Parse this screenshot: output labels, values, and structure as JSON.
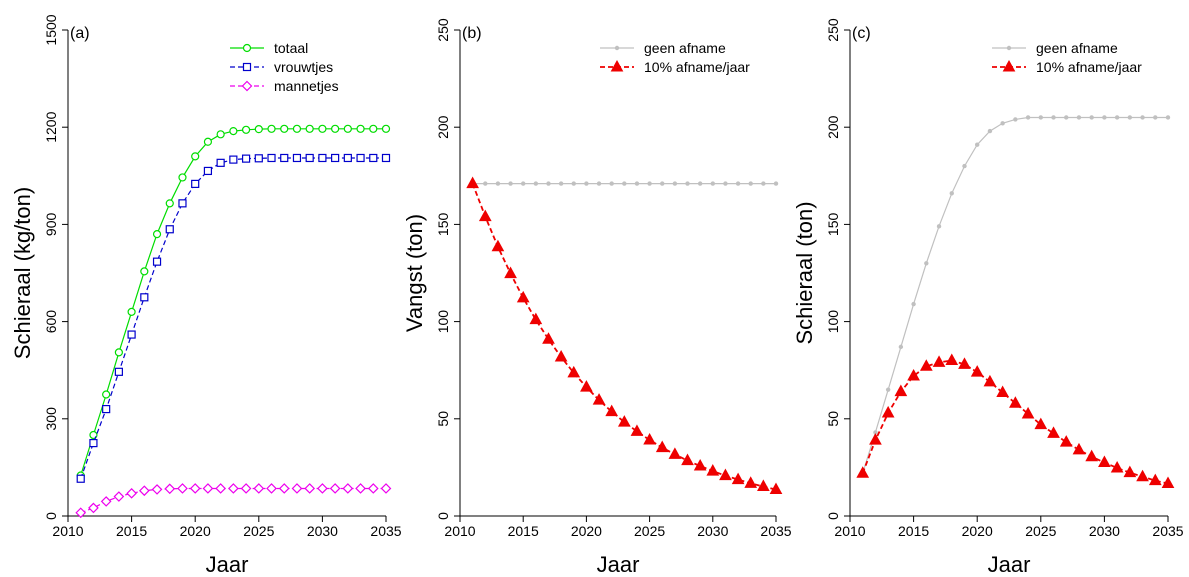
{
  "chart_data": [
    {
      "type": "line",
      "panel_label": "(a)",
      "xlabel": "Jaar",
      "ylabel": "Schieraal (kg/ton)",
      "xlim": [
        2010,
        2035
      ],
      "ylim": [
        0,
        1500
      ],
      "xticks": [
        2010,
        2015,
        2020,
        2025,
        2030,
        2035
      ],
      "yticks": [
        0,
        300,
        600,
        900,
        1200,
        1500
      ],
      "legend_position": "top-right",
      "x": [
        2011,
        2012,
        2013,
        2014,
        2015,
        2016,
        2017,
        2018,
        2019,
        2020,
        2021,
        2022,
        2023,
        2024,
        2025,
        2026,
        2027,
        2028,
        2029,
        2030,
        2031,
        2032,
        2033,
        2034,
        2035
      ],
      "series": [
        {
          "name": "totaal",
          "color": "#00dd00",
          "marker": "circle",
          "dash": "solid",
          "values": [
            125,
            250,
            375,
            505,
            630,
            755,
            870,
            965,
            1045,
            1110,
            1155,
            1178,
            1188,
            1192,
            1194,
            1195,
            1195,
            1195,
            1195,
            1195,
            1195,
            1195,
            1195,
            1195,
            1195
          ]
        },
        {
          "name": "vrouwtjes",
          "color": "#0000cc",
          "marker": "square",
          "dash": "dashed",
          "values": [
            115,
            225,
            330,
            445,
            560,
            675,
            785,
            885,
            965,
            1025,
            1065,
            1090,
            1100,
            1103,
            1104,
            1105,
            1105,
            1105,
            1105,
            1105,
            1105,
            1105,
            1105,
            1105,
            1105
          ]
        },
        {
          "name": "mannetjes",
          "color": "#ee00ee",
          "marker": "diamond",
          "dash": "dashed",
          "values": [
            10,
            25,
            45,
            60,
            70,
            78,
            82,
            84,
            85,
            85,
            85,
            85,
            85,
            85,
            85,
            85,
            85,
            85,
            85,
            85,
            85,
            85,
            85,
            85,
            85
          ]
        }
      ]
    },
    {
      "type": "line",
      "panel_label": "(b)",
      "xlabel": "Jaar",
      "ylabel": "Vangst (ton)",
      "xlim": [
        2010,
        2035
      ],
      "ylim": [
        0,
        250
      ],
      "xticks": [
        2010,
        2015,
        2020,
        2025,
        2030,
        2035
      ],
      "yticks": [
        0,
        50,
        100,
        150,
        200,
        250
      ],
      "legend_position": "top-right",
      "x": [
        2011,
        2012,
        2013,
        2014,
        2015,
        2016,
        2017,
        2018,
        2019,
        2020,
        2021,
        2022,
        2023,
        2024,
        2025,
        2026,
        2027,
        2028,
        2029,
        2030,
        2031,
        2032,
        2033,
        2034,
        2035
      ],
      "series": [
        {
          "name": "geen afname",
          "color": "#c0c0c0",
          "marker": "dot",
          "dash": "solid",
          "values": [
            171,
            171,
            171,
            171,
            171,
            171,
            171,
            171,
            171,
            171,
            171,
            171,
            171,
            171,
            171,
            171,
            171,
            171,
            171,
            171,
            171,
            171,
            171,
            171,
            171
          ]
        },
        {
          "name": "10% afname/jaar",
          "color": "#ee0000",
          "marker": "triangle",
          "dash": "dashed",
          "values": [
            171,
            154,
            138.5,
            124.7,
            112.2,
            101,
            90.9,
            81.8,
            73.6,
            66.3,
            59.6,
            53.7,
            48.3,
            43.5,
            39.1,
            35.2,
            31.7,
            28.5,
            25.7,
            23.1,
            20.8,
            18.7,
            16.8,
            15.2,
            13.6
          ]
        }
      ]
    },
    {
      "type": "line",
      "panel_label": "(c)",
      "xlabel": "Jaar",
      "ylabel": "Schieraal (ton)",
      "xlim": [
        2010,
        2035
      ],
      "ylim": [
        0,
        250
      ],
      "xticks": [
        2010,
        2015,
        2020,
        2025,
        2030,
        2035
      ],
      "yticks": [
        0,
        50,
        100,
        150,
        200,
        250
      ],
      "legend_position": "top-right",
      "x": [
        2011,
        2012,
        2013,
        2014,
        2015,
        2016,
        2017,
        2018,
        2019,
        2020,
        2021,
        2022,
        2023,
        2024,
        2025,
        2026,
        2027,
        2028,
        2029,
        2030,
        2031,
        2032,
        2033,
        2034,
        2035
      ],
      "series": [
        {
          "name": "geen afname",
          "color": "#c0c0c0",
          "marker": "dot",
          "dash": "solid",
          "values": [
            22,
            43,
            65,
            87,
            109,
            130,
            149,
            166,
            180,
            191,
            198,
            202,
            204,
            205,
            205,
            205,
            205,
            205,
            205,
            205,
            205,
            205,
            205,
            205,
            205
          ]
        },
        {
          "name": "10% afname/jaar",
          "color": "#ee0000",
          "marker": "triangle",
          "dash": "dashed",
          "values": [
            22,
            39,
            53,
            64,
            72,
            77,
            79,
            80,
            78,
            74,
            69,
            63.5,
            58,
            52.5,
            47,
            42.5,
            38,
            34,
            30.5,
            27.5,
            24.7,
            22.3,
            20.2,
            18.2,
            16.7
          ]
        }
      ]
    }
  ]
}
